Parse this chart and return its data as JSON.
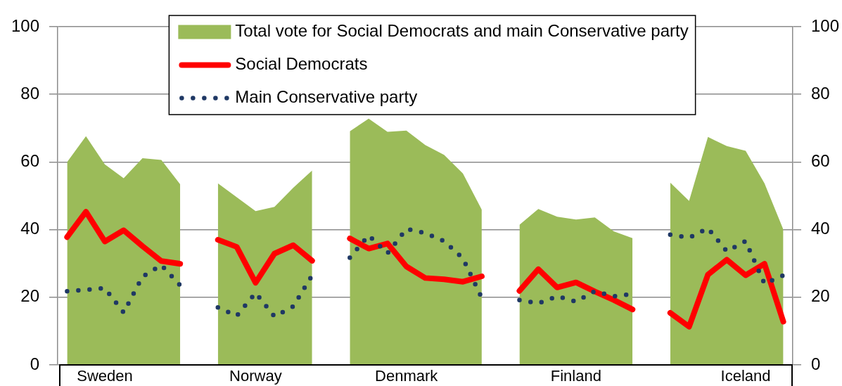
{
  "chart_data": {
    "type": "line",
    "categories": [
      null,
      null,
      "Sweden",
      null,
      null,
      null,
      null,
      null,
      null,
      null,
      "Norway",
      null,
      null,
      null,
      null,
      null,
      null,
      null,
      "Denmark",
      null,
      null,
      null,
      null,
      null,
      null,
      null,
      null,
      "Finland",
      null,
      null,
      null,
      null,
      null,
      null,
      null,
      null,
      "Iceland",
      null,
      null
    ],
    "series": [
      {
        "type": "area",
        "name": "Total vote for Social Democrats and main Conservative party",
        "color": "#9bbb59",
        "values": [
          60.0,
          67.6,
          59.3,
          55.2,
          61.1,
          60.6,
          53.4,
          null,
          53.7,
          49.6,
          45.5,
          46.7,
          52.4,
          57.5,
          null,
          69.1,
          72.8,
          68.9,
          69.3,
          65.0,
          62.1,
          56.6,
          45.9,
          null,
          41.4,
          46.1,
          43.8,
          43.0,
          43.6,
          39.5,
          37.5,
          null,
          53.9,
          48.5,
          67.4,
          64.7,
          63.3,
          53.7,
          40.0
        ]
      },
      {
        "name": "Social Democrats",
        "color": "#ff0000",
        "line_style": "solid",
        "values": [
          37.8,
          45.3,
          36.5,
          39.8,
          35.1,
          30.7,
          29.9,
          null,
          37.0,
          34.9,
          24.3,
          32.9,
          35.4,
          30.8,
          null,
          37.4,
          34.4,
          35.9,
          29.1,
          25.7,
          25.3,
          24.6,
          26.2,
          null,
          21.9,
          28.3,
          22.9,
          24.4,
          21.7,
          19.2,
          16.4,
          null,
          15.4,
          11.3,
          26.7,
          31.1,
          26.5,
          29.9,
          12.8
        ]
      },
      {
        "name": "Main Conservative party",
        "color": "#1f3864",
        "line_style": "dotted",
        "values": [
          21.8,
          22.2,
          22.7,
          15.5,
          26.1,
          29.5,
          23.5,
          null,
          17.0,
          14.5,
          21.3,
          14.3,
          17.3,
          26.5,
          null,
          31.7,
          38.3,
          33.0,
          40.2,
          39.0,
          36.6,
          31.5,
          19.8,
          null,
          19.2,
          18.2,
          20.3,
          18.7,
          21.8,
          20.3,
          21.0,
          null,
          38.5,
          37.6,
          40.4,
          33.6,
          36.6,
          24.0,
          26.5
        ]
      }
    ],
    "ylim": [
      0,
      100
    ],
    "yticks": [
      0,
      20,
      40,
      60,
      80,
      100
    ],
    "y2lim": [
      0,
      100
    ],
    "y2ticks": [
      0,
      20,
      40,
      60,
      80,
      100
    ],
    "grid": "y",
    "legend": "top",
    "marker": "none"
  }
}
